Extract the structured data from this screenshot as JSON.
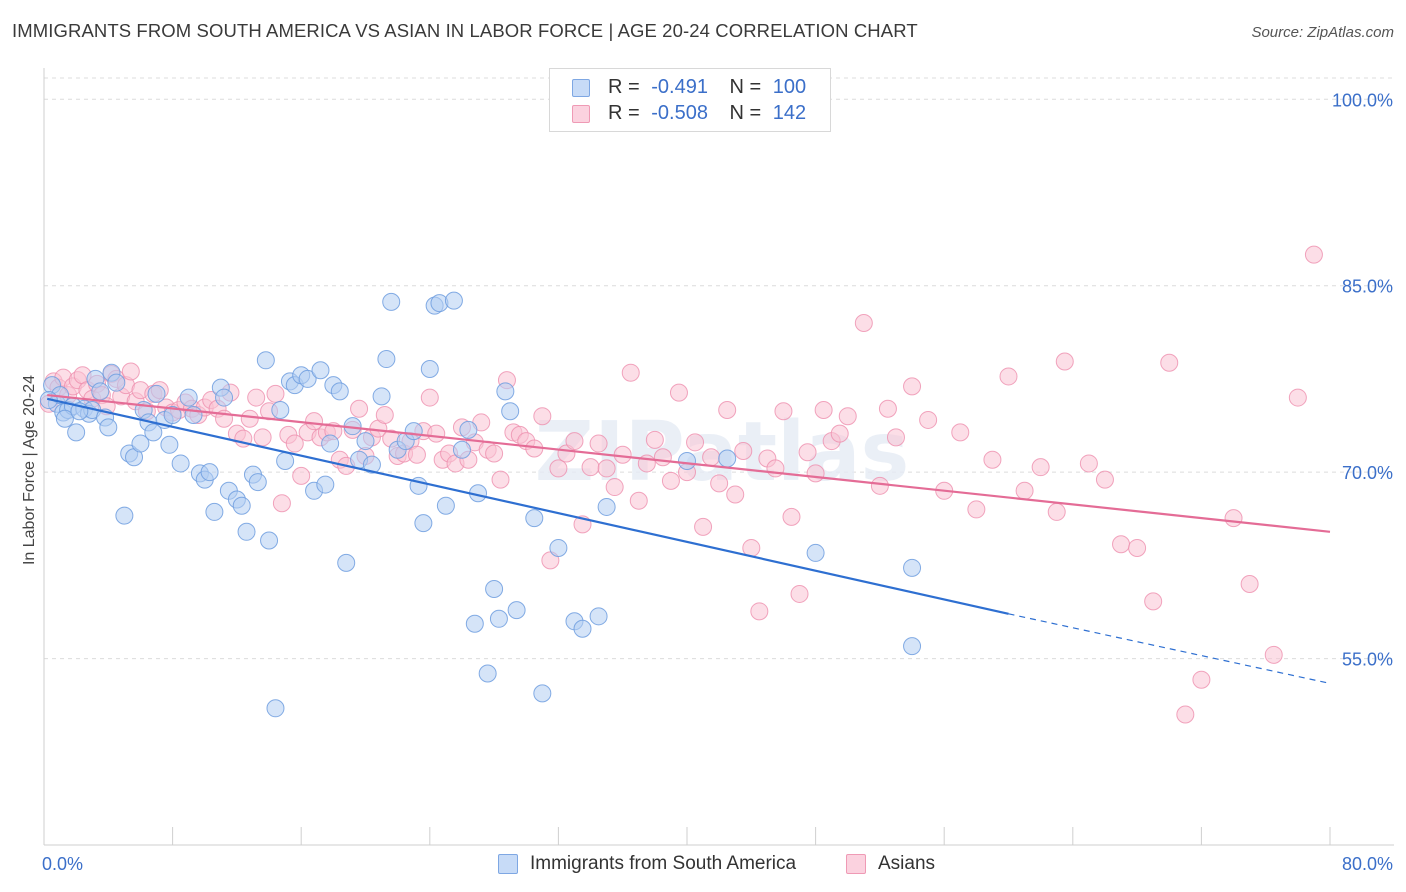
{
  "title": "IMMIGRANTS FROM SOUTH AMERICA VS ASIAN IN LABOR FORCE | AGE 20-24 CORRELATION CHART",
  "source": "Source: ZipAtlas.com",
  "watermark": "ZIPatlas",
  "legend_box": {
    "rows": [
      {
        "r_label": "R =",
        "r_value": "-0.491",
        "n_label": "N =",
        "n_value": "100",
        "color": "#9dbfef"
      },
      {
        "r_label": "R =",
        "r_value": "-0.508",
        "n_label": "N =",
        "n_value": "142",
        "color": "#f4a8c0"
      }
    ]
  },
  "colors": {
    "blue_fill": "#b3cdf3",
    "blue_stroke": "#6f9ddf",
    "blue_line": "#2e6fd1",
    "pink_fill": "#f9c3d4",
    "pink_stroke": "#ee8fae",
    "pink_line": "#e46c96",
    "grid": "#dcdcdc",
    "tick_text": "#3b6fc9"
  },
  "chart_data": {
    "type": "scatter",
    "title": "IMMIGRANTS FROM SOUTH AMERICA VS ASIAN IN LABOR FORCE | AGE 20-24 CORRELATION CHART",
    "xlabel": "",
    "ylabel": "In Labor Force | Age 20-24",
    "xlim": [
      0,
      80
    ],
    "ylim": [
      40,
      103
    ],
    "x_tick_labels": [
      "0.0%",
      "80.0%"
    ],
    "y_ticks": [
      55,
      70,
      85,
      100
    ],
    "y_tick_labels": [
      "55.0%",
      "70.0%",
      "85.0%",
      "100.0%"
    ],
    "grid": true,
    "legend_position": "bottom",
    "series": [
      {
        "name": "Immigrants from South America",
        "r": -0.491,
        "n": 100,
        "trend": {
          "x0": 0.2,
          "y0": 75.9,
          "x1": 60.0,
          "y1": 58.6,
          "dash_to_x": 80.0,
          "dash_to_y": 53.0
        },
        "points": [
          [
            0.5,
            77.0
          ],
          [
            0.8,
            75.5
          ],
          [
            1.0,
            76.2
          ],
          [
            1.2,
            74.8
          ],
          [
            1.5,
            75.0
          ],
          [
            1.8,
            75.3
          ],
          [
            2.0,
            73.2
          ],
          [
            2.5,
            75.1
          ],
          [
            2.8,
            74.7
          ],
          [
            3.0,
            75.0
          ],
          [
            3.2,
            77.5
          ],
          [
            3.5,
            76.5
          ],
          [
            3.8,
            74.4
          ],
          [
            4.0,
            73.6
          ],
          [
            4.2,
            78.0
          ],
          [
            4.5,
            77.2
          ],
          [
            5.0,
            66.5
          ],
          [
            5.3,
            71.5
          ],
          [
            5.6,
            71.2
          ],
          [
            6.0,
            72.3
          ],
          [
            6.2,
            75.0
          ],
          [
            6.5,
            74.0
          ],
          [
            6.8,
            73.2
          ],
          [
            7.0,
            76.3
          ],
          [
            7.5,
            74.2
          ],
          [
            7.8,
            72.2
          ],
          [
            8.0,
            74.6
          ],
          [
            8.5,
            70.7
          ],
          [
            9.0,
            76.0
          ],
          [
            9.3,
            74.6
          ],
          [
            9.7,
            69.9
          ],
          [
            10.0,
            69.4
          ],
          [
            10.3,
            70.0
          ],
          [
            10.6,
            66.8
          ],
          [
            11.0,
            76.8
          ],
          [
            11.2,
            76.0
          ],
          [
            11.5,
            68.5
          ],
          [
            12.0,
            67.8
          ],
          [
            12.3,
            67.3
          ],
          [
            12.6,
            65.2
          ],
          [
            13.0,
            69.8
          ],
          [
            13.3,
            69.2
          ],
          [
            13.8,
            79.0
          ],
          [
            14.0,
            64.5
          ],
          [
            14.4,
            51.0
          ],
          [
            14.7,
            75.0
          ],
          [
            15.0,
            70.9
          ],
          [
            15.3,
            77.3
          ],
          [
            15.6,
            77.0
          ],
          [
            16.0,
            77.8
          ],
          [
            16.4,
            77.5
          ],
          [
            16.8,
            68.5
          ],
          [
            17.2,
            78.2
          ],
          [
            17.5,
            69.0
          ],
          [
            17.8,
            72.3
          ],
          [
            18.0,
            77.0
          ],
          [
            18.4,
            76.5
          ],
          [
            18.8,
            62.7
          ],
          [
            19.2,
            73.7
          ],
          [
            19.6,
            71.0
          ],
          [
            20.0,
            72.5
          ],
          [
            20.4,
            70.6
          ],
          [
            21.0,
            76.1
          ],
          [
            21.3,
            79.1
          ],
          [
            21.6,
            83.7
          ],
          [
            22.0,
            71.8
          ],
          [
            22.5,
            72.5
          ],
          [
            23.0,
            73.3
          ],
          [
            23.3,
            68.9
          ],
          [
            23.6,
            65.9
          ],
          [
            24.0,
            78.3
          ],
          [
            24.3,
            83.4
          ],
          [
            24.6,
            83.6
          ],
          [
            25.0,
            67.3
          ],
          [
            25.5,
            83.8
          ],
          [
            26.0,
            71.8
          ],
          [
            26.4,
            73.4
          ],
          [
            26.8,
            57.8
          ],
          [
            27.0,
            68.3
          ],
          [
            27.6,
            53.8
          ],
          [
            28.0,
            60.6
          ],
          [
            28.3,
            58.2
          ],
          [
            28.7,
            76.5
          ],
          [
            29.0,
            74.9
          ],
          [
            29.4,
            58.9
          ],
          [
            30.5,
            66.3
          ],
          [
            31.0,
            52.2
          ],
          [
            32.0,
            63.9
          ],
          [
            33.0,
            58.0
          ],
          [
            33.5,
            57.4
          ],
          [
            34.5,
            58.4
          ],
          [
            35.0,
            67.2
          ],
          [
            40.0,
            70.9
          ],
          [
            42.5,
            71.1
          ],
          [
            48.0,
            63.5
          ],
          [
            54.0,
            62.3
          ],
          [
            54.0,
            56.0
          ],
          [
            0.3,
            75.8
          ],
          [
            1.3,
            74.3
          ],
          [
            2.2,
            74.9
          ]
        ]
      },
      {
        "name": "Asians",
        "r": -0.508,
        "n": 142,
        "trend": {
          "x0": 0.2,
          "y0": 76.2,
          "x1": 80.0,
          "y1": 65.2
        },
        "points": [
          [
            0.3,
            75.5
          ],
          [
            0.6,
            77.3
          ],
          [
            0.9,
            76.8
          ],
          [
            1.2,
            77.6
          ],
          [
            1.5,
            76.2
          ],
          [
            1.8,
            76.9
          ],
          [
            2.1,
            77.4
          ],
          [
            2.4,
            77.8
          ],
          [
            2.7,
            76.6
          ],
          [
            3.0,
            75.9
          ],
          [
            3.3,
            77.1
          ],
          [
            3.6,
            76.2
          ],
          [
            3.9,
            75.3
          ],
          [
            4.2,
            77.9
          ],
          [
            4.5,
            77.5
          ],
          [
            4.8,
            76.1
          ],
          [
            5.1,
            77.0
          ],
          [
            5.4,
            78.1
          ],
          [
            5.7,
            75.7
          ],
          [
            6.0,
            76.6
          ],
          [
            6.4,
            74.9
          ],
          [
            6.8,
            76.3
          ],
          [
            7.2,
            76.6
          ],
          [
            7.6,
            75.2
          ],
          [
            8.0,
            74.8
          ],
          [
            8.4,
            75.0
          ],
          [
            8.8,
            75.6
          ],
          [
            9.2,
            75.1
          ],
          [
            9.6,
            74.6
          ],
          [
            10.0,
            75.2
          ],
          [
            10.4,
            75.8
          ],
          [
            10.8,
            75.1
          ],
          [
            11.2,
            74.3
          ],
          [
            11.6,
            76.4
          ],
          [
            12.0,
            73.1
          ],
          [
            12.4,
            72.7
          ],
          [
            12.8,
            74.3
          ],
          [
            13.2,
            76.0
          ],
          [
            13.6,
            72.8
          ],
          [
            14.0,
            74.9
          ],
          [
            14.4,
            76.3
          ],
          [
            14.8,
            67.5
          ],
          [
            15.2,
            73.0
          ],
          [
            15.6,
            72.3
          ],
          [
            16.0,
            69.7
          ],
          [
            16.4,
            73.2
          ],
          [
            16.8,
            74.1
          ],
          [
            17.2,
            72.8
          ],
          [
            17.6,
            73.2
          ],
          [
            18.0,
            73.3
          ],
          [
            18.4,
            71.0
          ],
          [
            18.8,
            70.5
          ],
          [
            19.2,
            73.4
          ],
          [
            19.6,
            75.1
          ],
          [
            20.0,
            71.3
          ],
          [
            20.4,
            72.8
          ],
          [
            20.8,
            73.5
          ],
          [
            21.2,
            74.6
          ],
          [
            21.6,
            72.7
          ],
          [
            22.0,
            71.3
          ],
          [
            22.4,
            71.5
          ],
          [
            22.8,
            72.5
          ],
          [
            23.2,
            71.4
          ],
          [
            23.6,
            73.3
          ],
          [
            24.0,
            76.0
          ],
          [
            24.4,
            73.1
          ],
          [
            24.8,
            71.0
          ],
          [
            25.2,
            71.5
          ],
          [
            25.6,
            70.7
          ],
          [
            26.0,
            73.6
          ],
          [
            26.4,
            71.0
          ],
          [
            26.8,
            72.4
          ],
          [
            27.2,
            74.0
          ],
          [
            27.6,
            71.8
          ],
          [
            28.0,
            71.5
          ],
          [
            28.4,
            69.4
          ],
          [
            28.8,
            77.4
          ],
          [
            29.2,
            73.2
          ],
          [
            29.6,
            73.0
          ],
          [
            30.0,
            72.5
          ],
          [
            30.5,
            71.9
          ],
          [
            31.0,
            74.5
          ],
          [
            31.5,
            62.9
          ],
          [
            32.0,
            70.3
          ],
          [
            32.5,
            71.5
          ],
          [
            33.0,
            72.5
          ],
          [
            33.5,
            65.8
          ],
          [
            34.0,
            70.4
          ],
          [
            34.5,
            72.3
          ],
          [
            35.0,
            70.3
          ],
          [
            35.5,
            68.8
          ],
          [
            36.0,
            71.4
          ],
          [
            36.5,
            78.0
          ],
          [
            37.0,
            67.7
          ],
          [
            37.5,
            70.7
          ],
          [
            38.0,
            72.6
          ],
          [
            38.5,
            71.2
          ],
          [
            39.0,
            69.3
          ],
          [
            39.5,
            76.4
          ],
          [
            40.0,
            70.0
          ],
          [
            40.5,
            72.4
          ],
          [
            41.0,
            65.6
          ],
          [
            41.5,
            71.2
          ],
          [
            42.0,
            69.1
          ],
          [
            42.5,
            75.0
          ],
          [
            43.0,
            68.2
          ],
          [
            43.5,
            71.7
          ],
          [
            44.0,
            63.9
          ],
          [
            44.5,
            58.8
          ],
          [
            45.0,
            71.1
          ],
          [
            45.5,
            70.3
          ],
          [
            46.0,
            74.9
          ],
          [
            46.5,
            66.4
          ],
          [
            47.0,
            60.2
          ],
          [
            47.5,
            71.6
          ],
          [
            48.0,
            69.9
          ],
          [
            48.5,
            75.0
          ],
          [
            49.0,
            72.5
          ],
          [
            49.5,
            73.1
          ],
          [
            50.0,
            74.5
          ],
          [
            51.0,
            82.0
          ],
          [
            52.0,
            68.9
          ],
          [
            52.5,
            75.1
          ],
          [
            53.0,
            72.8
          ],
          [
            54.0,
            76.9
          ],
          [
            55.0,
            74.2
          ],
          [
            56.0,
            68.5
          ],
          [
            57.0,
            73.2
          ],
          [
            58.0,
            67.0
          ],
          [
            59.0,
            71.0
          ],
          [
            60.0,
            77.7
          ],
          [
            61.0,
            68.5
          ],
          [
            62.0,
            70.4
          ],
          [
            63.0,
            66.8
          ],
          [
            63.5,
            78.9
          ],
          [
            65.0,
            70.7
          ],
          [
            66.0,
            69.4
          ],
          [
            67.0,
            64.2
          ],
          [
            68.0,
            63.9
          ],
          [
            69.0,
            59.6
          ],
          [
            70.0,
            78.8
          ],
          [
            72.0,
            53.3
          ],
          [
            74.0,
            66.3
          ],
          [
            75.0,
            61.0
          ],
          [
            76.5,
            55.3
          ],
          [
            78.0,
            76.0
          ],
          [
            79.0,
            87.5
          ],
          [
            71.0,
            50.5
          ]
        ]
      }
    ]
  },
  "bottom_legend": {
    "items": [
      {
        "label": "Immigrants from South America"
      },
      {
        "label": "Asians"
      }
    ]
  }
}
